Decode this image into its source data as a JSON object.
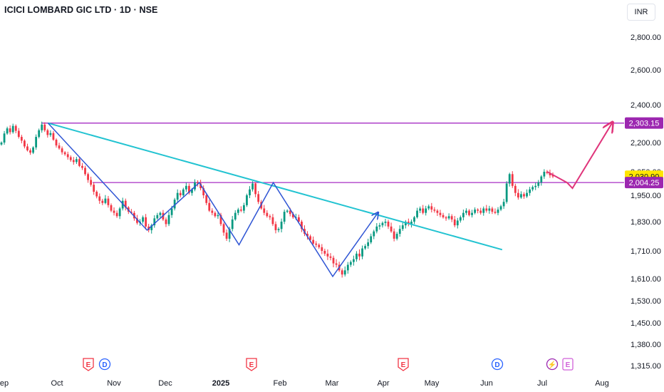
{
  "header": {
    "title": "ICICI LOMBARD GIC LTD · 1D · NSE",
    "currency": "INR"
  },
  "colors": {
    "up": "#089981",
    "down": "#f23645",
    "trendline": "#22c3d1",
    "level": "#a72fc4",
    "zigzag": "#2f55d4",
    "projection": "#e0357b",
    "current_price_bg": "#ffe500",
    "level_label_bg": "#9c27b0",
    "earnings": "#f23645",
    "dividend": "#2962ff"
  },
  "chart_data": {
    "type": "candlestick",
    "x_axis_labels": [
      "ep",
      "Oct",
      "Nov",
      "Dec",
      "2025",
      "Feb",
      "Mar",
      "Apr",
      "May",
      "Jun",
      "Jul",
      "Aug"
    ],
    "y_axis_labels": [
      "2,800.00",
      "2,600.00",
      "2,400.00",
      "2,200.00",
      "2,050.00",
      "1,950.00",
      "1,830.00",
      "1,710.00",
      "1,610.00",
      "1,530.00",
      "1,450.00",
      "1,380.00",
      "1,315.00"
    ],
    "price_labels": [
      {
        "text": "2,303.15",
        "value": 2303.15,
        "kind": "level"
      },
      {
        "text": "2,030.90",
        "value": 2030.9,
        "kind": "current"
      },
      {
        "text": "2,004.25",
        "value": 2004.25,
        "kind": "level"
      }
    ],
    "horizontal_levels": [
      2303.15,
      2004.25
    ],
    "trendline": [
      {
        "date": "2024-09-26",
        "price": 2303
      },
      {
        "date": "2025-06-05",
        "price": 1715
      }
    ],
    "zigzag": [
      {
        "date": "2024-09-26",
        "price": 2303
      },
      {
        "date": "2024-11-20",
        "price": 1795
      },
      {
        "date": "2024-12-19",
        "price": 2004
      },
      {
        "date": "2025-01-10",
        "price": 1735
      },
      {
        "date": "2025-01-29",
        "price": 2004
      },
      {
        "date": "2025-03-03",
        "price": 1618
      },
      {
        "date": "2025-03-28",
        "price": 1870
      }
    ],
    "projection": [
      {
        "date": "2025-06-30",
        "price": 2050
      },
      {
        "date": "2025-07-11",
        "price": 2004
      },
      {
        "date": "2025-07-14",
        "price": 1980
      },
      {
        "date": "2025-08-05",
        "price": 2303
      }
    ],
    "events": [
      {
        "label": "E",
        "kind": "earnings",
        "month": "Oct"
      },
      {
        "label": "D",
        "kind": "dividend",
        "month": "Oct"
      },
      {
        "label": "E",
        "kind": "earnings",
        "month": "2025"
      },
      {
        "label": "E",
        "kind": "earnings",
        "month": "Apr"
      },
      {
        "label": "D",
        "kind": "dividend",
        "month": "Jun"
      },
      {
        "label": "⚡",
        "kind": "split",
        "month": "Jul"
      },
      {
        "label": "E",
        "kind": "earnings-future",
        "month": "Jul"
      }
    ],
    "candles_close": [
      2200,
      2248,
      2275,
      2255,
      2288,
      2262,
      2230,
      2210,
      2180,
      2160,
      2148,
      2175,
      2230,
      2265,
      2295,
      2265,
      2240,
      2250,
      2215,
      2185,
      2170,
      2150,
      2140,
      2125,
      2110,
      2100,
      2115,
      2080,
      2070,
      2040,
      2015,
      1995,
      1965,
      1945,
      1925,
      1915,
      1935,
      1905,
      1880,
      1870,
      1855,
      1890,
      1925,
      1895,
      1875,
      1870,
      1845,
      1825,
      1830,
      1850,
      1810,
      1795,
      1815,
      1845,
      1860,
      1870,
      1840,
      1820,
      1860,
      1890,
      1930,
      1960,
      1950,
      1975,
      1990,
      1960,
      1975,
      2005,
      2000,
      1980,
      1950,
      1915,
      1880,
      1870,
      1855,
      1860,
      1820,
      1785,
      1760,
      1800,
      1840,
      1870,
      1885,
      1880,
      1905,
      1950,
      1975,
      2000,
      1955,
      1920,
      1890,
      1870,
      1855,
      1850,
      1820,
      1795,
      1800,
      1830,
      1875,
      1880,
      1865,
      1850,
      1850,
      1830,
      1800,
      1780,
      1770,
      1755,
      1740,
      1735,
      1725,
      1710,
      1700,
      1690,
      1685,
      1665,
      1660,
      1640,
      1625,
      1640,
      1660,
      1670,
      1680,
      1700,
      1690,
      1720,
      1730,
      1745,
      1770,
      1790,
      1810,
      1815,
      1825,
      1830,
      1810,
      1790,
      1760,
      1780,
      1800,
      1815,
      1830,
      1820,
      1830,
      1850,
      1880,
      1890,
      1870,
      1890,
      1900,
      1885,
      1880,
      1870,
      1860,
      1850,
      1845,
      1855,
      1840,
      1815,
      1835,
      1850,
      1870,
      1880,
      1860,
      1870,
      1885,
      1880,
      1870,
      1890,
      1880,
      1890,
      1875,
      1870,
      1885,
      1900,
      1920,
      2000,
      2040,
      1990,
      1960,
      1940,
      1955,
      1945,
      1960,
      1975,
      1985,
      1990,
      2005,
      2030,
      2050,
      2045,
      2035,
      2030
    ]
  }
}
